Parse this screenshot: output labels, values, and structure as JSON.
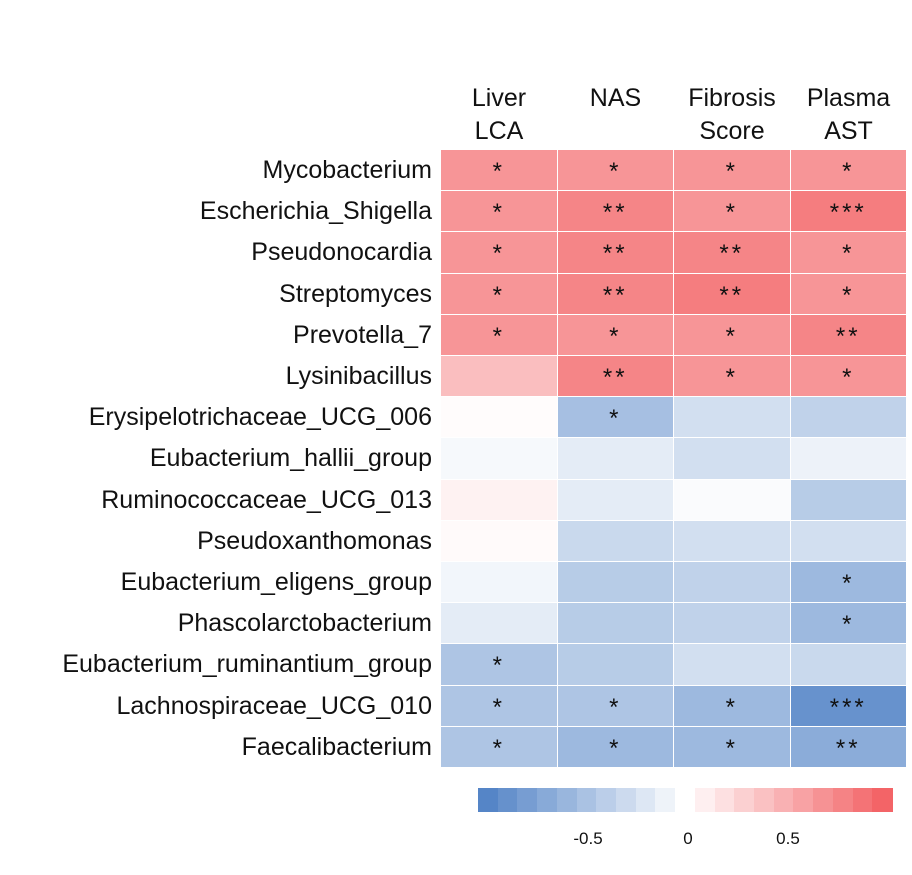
{
  "chart_data": {
    "type": "heatmap",
    "title": "",
    "columns": [
      {
        "line1": "Liver",
        "line2": "LCA"
      },
      {
        "line1": "NAS",
        "line2": ""
      },
      {
        "line1": "Fibrosis",
        "line2": "Score"
      },
      {
        "line1": "Plasma",
        "line2": "AST"
      }
    ],
    "rows": [
      "Mycobacterium",
      "Escherichia_Shigella",
      "Pseudonocardia",
      "Streptomyces",
      "Prevotella_7",
      "Lysinibacillus",
      "Erysipelotrichaceae_UCG_006",
      "Eubacterium_hallii_group",
      "Ruminococcaceae_UCG_013",
      "Pseudoxanthomonas",
      "Eubacterium_eligens_group",
      "Phascolarctobacterium",
      "Eubacterium_ruminantium_group",
      "Lachnospiraceae_UCG_010",
      "Faecalibacterium"
    ],
    "values": [
      [
        0.65,
        0.65,
        0.65,
        0.65
      ],
      [
        0.65,
        0.75,
        0.65,
        0.8
      ],
      [
        0.65,
        0.75,
        0.75,
        0.65
      ],
      [
        0.65,
        0.75,
        0.8,
        0.65
      ],
      [
        0.65,
        0.65,
        0.65,
        0.75
      ],
      [
        0.4,
        0.75,
        0.65,
        0.65
      ],
      [
        0.02,
        -0.5,
        -0.25,
        -0.35
      ],
      [
        -0.05,
        -0.15,
        -0.25,
        -0.1
      ],
      [
        0.08,
        -0.15,
        -0.03,
        -0.4
      ],
      [
        0.03,
        -0.3,
        -0.25,
        -0.25
      ],
      [
        -0.07,
        -0.4,
        -0.35,
        -0.55
      ],
      [
        -0.15,
        -0.4,
        -0.35,
        -0.55
      ],
      [
        -0.45,
        -0.4,
        -0.25,
        -0.3
      ],
      [
        -0.45,
        -0.45,
        -0.55,
        -0.85
      ],
      [
        -0.45,
        -0.55,
        -0.55,
        -0.65
      ]
    ],
    "significance": [
      [
        "*",
        "*",
        "*",
        "*"
      ],
      [
        "*",
        "**",
        "*",
        "***"
      ],
      [
        "*",
        "**",
        "**",
        "*"
      ],
      [
        "*",
        "**",
        "**",
        "*"
      ],
      [
        "*",
        "*",
        "*",
        "**"
      ],
      [
        "",
        "**",
        "*",
        "*"
      ],
      [
        "",
        "*",
        "",
        ""
      ],
      [
        "",
        "",
        "",
        ""
      ],
      [
        "",
        "",
        "",
        ""
      ],
      [
        "",
        "",
        "",
        ""
      ],
      [
        "",
        "",
        "",
        "*"
      ],
      [
        "",
        "",
        "",
        "*"
      ],
      [
        "*",
        "",
        "",
        ""
      ],
      [
        "*",
        "*",
        "*",
        "***"
      ],
      [
        "*",
        "*",
        "*",
        "**"
      ]
    ],
    "colorbar": {
      "range": [
        -1,
        1
      ],
      "low_color": "#4c7fc4",
      "mid_color": "#ffffff",
      "high_color": "#f25c5f",
      "ticks": [
        {
          "value": -0.5,
          "label": "-0.5"
        },
        {
          "value": 0,
          "label": "0"
        },
        {
          "value": 0.5,
          "label": "0.5"
        }
      ]
    }
  }
}
